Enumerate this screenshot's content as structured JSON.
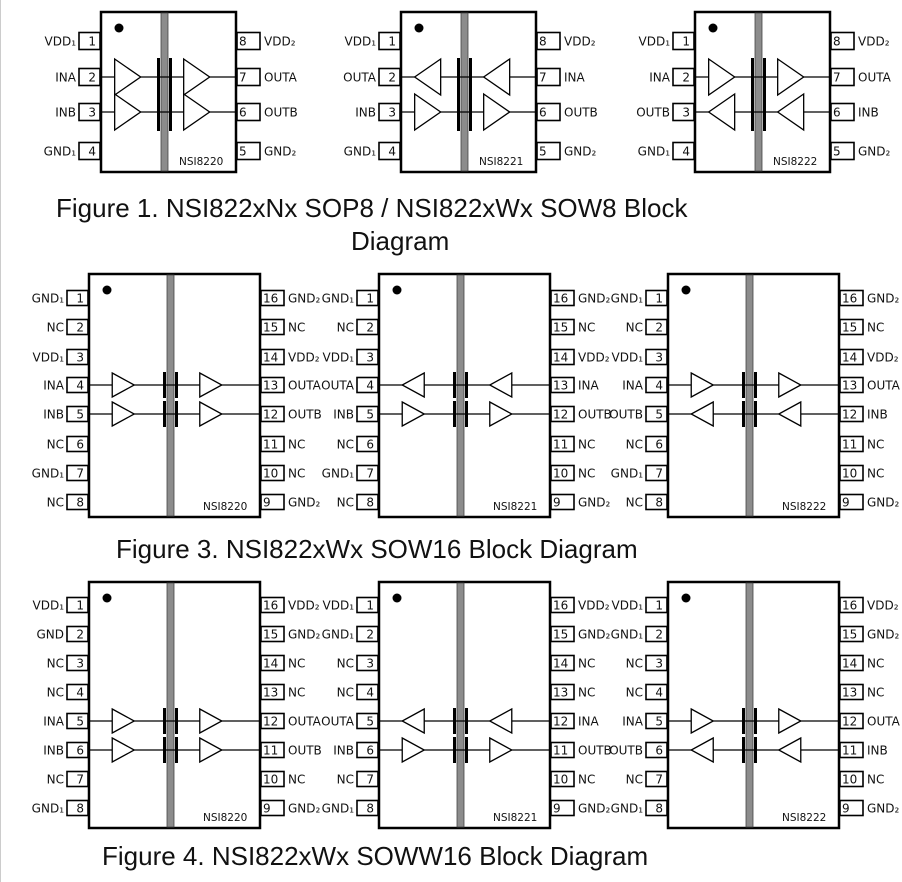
{
  "figures": [
    {
      "caption_lines": [
        "Figure 1. NSI822xNx SOP8 / NSI822xWx SOW8 Block",
        "Diagram"
      ],
      "package": "SOP8",
      "chips": [
        {
          "part": "NSI8220",
          "channels": [
            "forward",
            "forward"
          ],
          "left_pins": [
            {
              "num": "1",
              "label": "VDD₁"
            },
            {
              "num": "2",
              "label": "INA"
            },
            {
              "num": "3",
              "label": "INB"
            },
            {
              "num": "4",
              "label": "GND₁"
            }
          ],
          "right_pins": [
            {
              "num": "8",
              "label": "VDD₂"
            },
            {
              "num": "7",
              "label": "OUTA"
            },
            {
              "num": "6",
              "label": "OUTB"
            },
            {
              "num": "5",
              "label": "GND₂"
            }
          ]
        },
        {
          "part": "NSI8221",
          "channels": [
            "reverse",
            "forward"
          ],
          "left_pins": [
            {
              "num": "1",
              "label": "VDD₁"
            },
            {
              "num": "2",
              "label": "OUTA"
            },
            {
              "num": "3",
              "label": "INB"
            },
            {
              "num": "4",
              "label": "GND₁"
            }
          ],
          "right_pins": [
            {
              "num": "8",
              "label": "VDD₂"
            },
            {
              "num": "7",
              "label": "INA"
            },
            {
              "num": "6",
              "label": "OUTB"
            },
            {
              "num": "5",
              "label": "GND₂"
            }
          ]
        },
        {
          "part": "NSI8222",
          "channels": [
            "forward",
            "reverse"
          ],
          "left_pins": [
            {
              "num": "1",
              "label": "VDD₁"
            },
            {
              "num": "2",
              "label": "INA"
            },
            {
              "num": "3",
              "label": "OUTB"
            },
            {
              "num": "4",
              "label": "GND₁"
            }
          ],
          "right_pins": [
            {
              "num": "8",
              "label": "VDD₂"
            },
            {
              "num": "7",
              "label": "OUTA"
            },
            {
              "num": "6",
              "label": "INB"
            },
            {
              "num": "5",
              "label": "GND₂"
            }
          ]
        }
      ]
    },
    {
      "caption_lines": [
        "Figure 3. NSI822xWx SOW16 Block Diagram"
      ],
      "package": "SOW16",
      "chips": [
        {
          "part": "NSI8220",
          "channels": [
            "forward",
            "forward"
          ],
          "left_pins": [
            {
              "num": "1",
              "label": "GND₁"
            },
            {
              "num": "2",
              "label": "NC"
            },
            {
              "num": "3",
              "label": "VDD₁"
            },
            {
              "num": "4",
              "label": "INA"
            },
            {
              "num": "5",
              "label": "INB"
            },
            {
              "num": "6",
              "label": "NC"
            },
            {
              "num": "7",
              "label": "GND₁"
            },
            {
              "num": "8",
              "label": "NC"
            }
          ],
          "right_pins": [
            {
              "num": "16",
              "label": "GND₂"
            },
            {
              "num": "15",
              "label": "NC"
            },
            {
              "num": "14",
              "label": "VDD₂"
            },
            {
              "num": "13",
              "label": "OUTA"
            },
            {
              "num": "12",
              "label": "OUTB"
            },
            {
              "num": "11",
              "label": "NC"
            },
            {
              "num": "10",
              "label": "NC"
            },
            {
              "num": "9",
              "label": "GND₂"
            }
          ]
        },
        {
          "part": "NSI8221",
          "channels": [
            "reverse",
            "forward"
          ],
          "left_pins": [
            {
              "num": "1",
              "label": "GND₁"
            },
            {
              "num": "2",
              "label": "NC"
            },
            {
              "num": "3",
              "label": "VDD₁"
            },
            {
              "num": "4",
              "label": "OUTA"
            },
            {
              "num": "5",
              "label": "INB"
            },
            {
              "num": "6",
              "label": "NC"
            },
            {
              "num": "7",
              "label": "GND₁"
            },
            {
              "num": "8",
              "label": "NC"
            }
          ],
          "right_pins": [
            {
              "num": "16",
              "label": "GND₂"
            },
            {
              "num": "15",
              "label": "NC"
            },
            {
              "num": "14",
              "label": "VDD₂"
            },
            {
              "num": "13",
              "label": "INA"
            },
            {
              "num": "12",
              "label": "OUTB"
            },
            {
              "num": "11",
              "label": "NC"
            },
            {
              "num": "10",
              "label": "NC"
            },
            {
              "num": "9",
              "label": "GND₂"
            }
          ]
        },
        {
          "part": "NSI8222",
          "channels": [
            "forward",
            "reverse"
          ],
          "left_pins": [
            {
              "num": "1",
              "label": "GND₁"
            },
            {
              "num": "2",
              "label": "NC"
            },
            {
              "num": "3",
              "label": "VDD₁"
            },
            {
              "num": "4",
              "label": "INA"
            },
            {
              "num": "5",
              "label": "OUTB"
            },
            {
              "num": "6",
              "label": "NC"
            },
            {
              "num": "7",
              "label": "GND₁"
            },
            {
              "num": "8",
              "label": "NC"
            }
          ],
          "right_pins": [
            {
              "num": "16",
              "label": "GND₂"
            },
            {
              "num": "15",
              "label": "NC"
            },
            {
              "num": "14",
              "label": "VDD₂"
            },
            {
              "num": "13",
              "label": "OUTA"
            },
            {
              "num": "12",
              "label": "INB"
            },
            {
              "num": "11",
              "label": "NC"
            },
            {
              "num": "10",
              "label": "NC"
            },
            {
              "num": "9",
              "label": "GND₂"
            }
          ]
        }
      ]
    },
    {
      "caption_lines": [
        "Figure 4. NSI822xWx SOWW16 Block Diagram"
      ],
      "package": "SOWW16",
      "chips": [
        {
          "part": "NSI8220",
          "channels": [
            "forward",
            "forward"
          ],
          "left_pins": [
            {
              "num": "1",
              "label": "VDD₁"
            },
            {
              "num": "2",
              "label": "GND"
            },
            {
              "num": "3",
              "label": "NC"
            },
            {
              "num": "4",
              "label": "NC"
            },
            {
              "num": "5",
              "label": "INA"
            },
            {
              "num": "6",
              "label": "INB"
            },
            {
              "num": "7",
              "label": "NC"
            },
            {
              "num": "8",
              "label": "GND₁"
            }
          ],
          "right_pins": [
            {
              "num": "16",
              "label": "VDD₂"
            },
            {
              "num": "15",
              "label": "GND₂"
            },
            {
              "num": "14",
              "label": "NC"
            },
            {
              "num": "13",
              "label": "NC"
            },
            {
              "num": "12",
              "label": "OUTA"
            },
            {
              "num": "11",
              "label": "OUTB"
            },
            {
              "num": "10",
              "label": "NC"
            },
            {
              "num": "9",
              "label": "GND₂"
            }
          ]
        },
        {
          "part": "NSI8221",
          "channels": [
            "reverse",
            "forward"
          ],
          "left_pins": [
            {
              "num": "1",
              "label": "VDD₁"
            },
            {
              "num": "2",
              "label": "GND₁"
            },
            {
              "num": "3",
              "label": "NC"
            },
            {
              "num": "4",
              "label": "NC"
            },
            {
              "num": "5",
              "label": "OUTA"
            },
            {
              "num": "6",
              "label": "INB"
            },
            {
              "num": "7",
              "label": "NC"
            },
            {
              "num": "8",
              "label": "GND₁"
            }
          ],
          "right_pins": [
            {
              "num": "16",
              "label": "VDD₂"
            },
            {
              "num": "15",
              "label": "GND₂"
            },
            {
              "num": "14",
              "label": "NC"
            },
            {
              "num": "13",
              "label": "NC"
            },
            {
              "num": "12",
              "label": "INA"
            },
            {
              "num": "11",
              "label": "OUTB"
            },
            {
              "num": "10",
              "label": "NC"
            },
            {
              "num": "9",
              "label": "GND₂"
            }
          ]
        },
        {
          "part": "NSI8222",
          "channels": [
            "forward",
            "reverse"
          ],
          "left_pins": [
            {
              "num": "1",
              "label": "VDD₁"
            },
            {
              "num": "2",
              "label": "GND₁"
            },
            {
              "num": "3",
              "label": "NC"
            },
            {
              "num": "4",
              "label": "NC"
            },
            {
              "num": "5",
              "label": "INA"
            },
            {
              "num": "6",
              "label": "OUTB"
            },
            {
              "num": "7",
              "label": "NC"
            },
            {
              "num": "8",
              "label": "GND₁"
            }
          ],
          "right_pins": [
            {
              "num": "16",
              "label": "VDD₂"
            },
            {
              "num": "15",
              "label": "GND₂"
            },
            {
              "num": "14",
              "label": "NC"
            },
            {
              "num": "13",
              "label": "NC"
            },
            {
              "num": "12",
              "label": "OUTA"
            },
            {
              "num": "11",
              "label": "INB"
            },
            {
              "num": "10",
              "label": "NC"
            },
            {
              "num": "9",
              "label": "GND₂"
            }
          ]
        }
      ]
    }
  ],
  "colors": {
    "outline": "#000000",
    "isolation_barrier": "#8c8c8c"
  }
}
